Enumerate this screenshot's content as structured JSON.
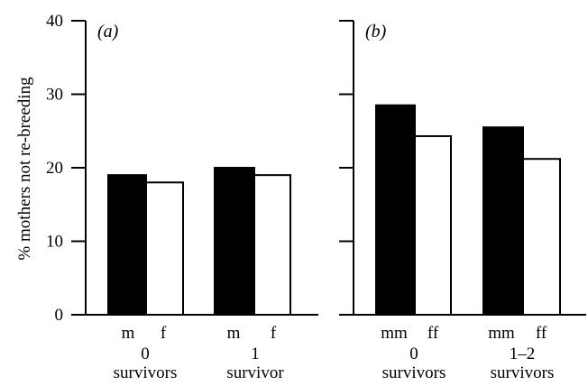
{
  "chart_data": [
    {
      "type": "bar",
      "panel_label": "(a)",
      "ylabel": "% mothers not re-breeding",
      "ylim": [
        0,
        40
      ],
      "yticks": [
        0,
        10,
        20,
        30,
        40
      ],
      "groups": [
        {
          "label_line1": "0",
          "label_line2": "survivors",
          "bars": [
            {
              "label": "m",
              "value": 19,
              "fill": "#000000"
            },
            {
              "label": "f",
              "value": 18,
              "fill": "#ffffff"
            }
          ]
        },
        {
          "label_line1": "1",
          "label_line2": "survivor",
          "bars": [
            {
              "label": "m",
              "value": 20,
              "fill": "#000000"
            },
            {
              "label": "f",
              "value": 19,
              "fill": "#ffffff"
            }
          ]
        }
      ]
    },
    {
      "type": "bar",
      "panel_label": "(b)",
      "ylim": [
        0,
        40
      ],
      "groups": [
        {
          "label_line1": "0",
          "label_line2": "survivors",
          "bars": [
            {
              "label": "mm",
              "value": 28.5,
              "fill": "#000000"
            },
            {
              "label": "ff",
              "value": 24.3,
              "fill": "#ffffff"
            }
          ]
        },
        {
          "label_line1": "1–2",
          "label_line2": "survivors",
          "bars": [
            {
              "label": "mm",
              "value": 25.5,
              "fill": "#000000"
            },
            {
              "label": "ff",
              "value": 21.2,
              "fill": "#ffffff"
            }
          ]
        }
      ]
    }
  ]
}
